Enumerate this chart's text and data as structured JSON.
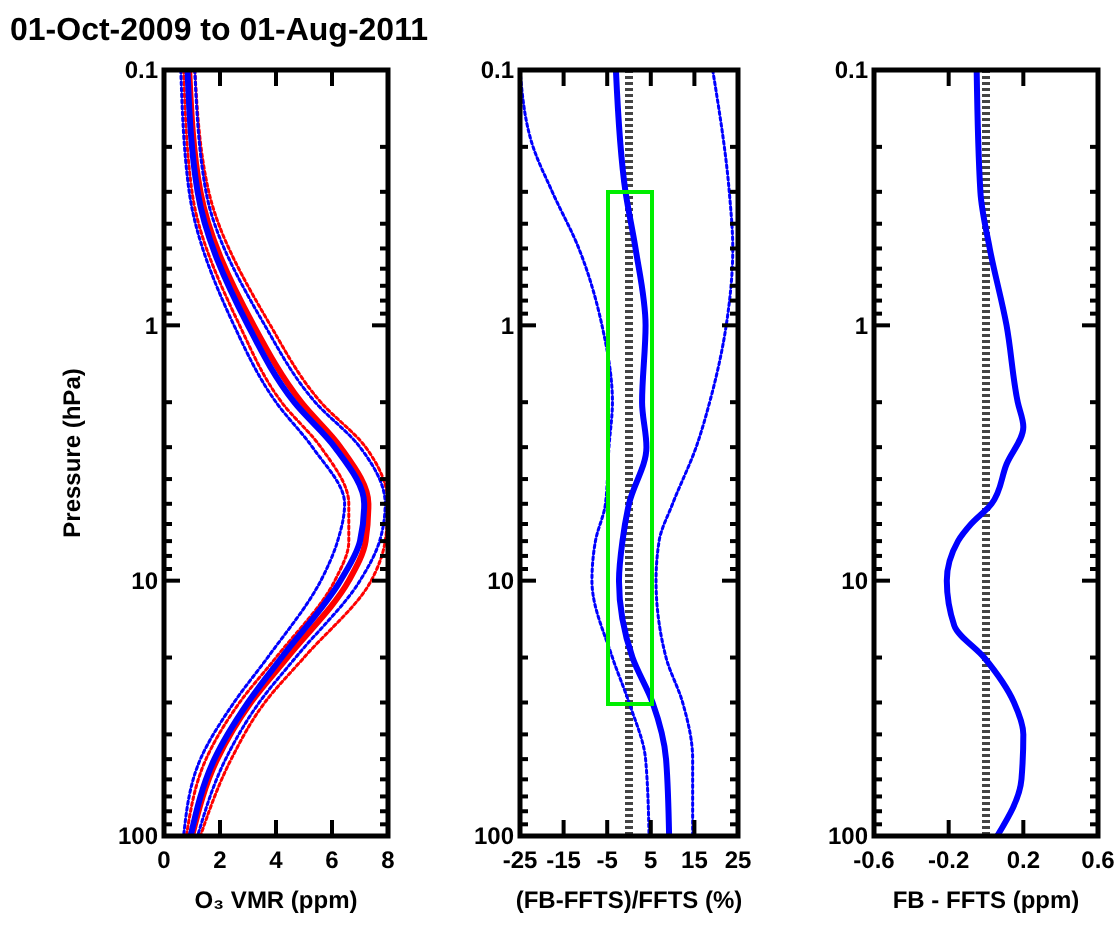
{
  "chart_data": [
    {
      "type": "line",
      "title": "01-Oct-2009 to 01-Aug-2011",
      "xlabel": "O₃ VMR (ppm)",
      "ylabel": "Pressure (hPa)",
      "log": "y",
      "xlim": [
        0,
        8
      ],
      "xticks": [
        0,
        2,
        4,
        6,
        8
      ],
      "ylim": [
        100,
        0.1
      ],
      "yticks": [
        0.1,
        {
          "value": 0.2,
          "label": null
        },
        {
          "value": 0.3,
          "label": null
        },
        {
          "value": 0.4,
          "label": null
        },
        {
          "value": 0.5,
          "label": null
        },
        {
          "value": 0.6,
          "label": null
        },
        {
          "value": 0.7,
          "label": null
        },
        {
          "value": 0.8,
          "label": null
        },
        {
          "value": 0.9,
          "label": null
        },
        1,
        {
          "value": 2,
          "label": null
        },
        {
          "value": 3,
          "label": null
        },
        {
          "value": 4,
          "label": null
        },
        {
          "value": 5,
          "label": null
        },
        {
          "value": 6,
          "label": null
        },
        {
          "value": 7,
          "label": null
        },
        {
          "value": 8,
          "label": null
        },
        {
          "value": 9,
          "label": null
        },
        10,
        {
          "value": 20,
          "label": null
        },
        {
          "value": 30,
          "label": null
        },
        {
          "value": 40,
          "label": null
        },
        {
          "value": 50,
          "label": null
        },
        {
          "value": 60,
          "label": null
        },
        {
          "value": 70,
          "label": null
        },
        {
          "value": 80,
          "label": null
        },
        {
          "value": 90,
          "label": null
        },
        100
      ],
      "series": [
        {
          "color": "#ff0000",
          "line_style": "dotted",
          "x": [
            0.7,
            1.0,
            2.7,
            4.2,
            5.6,
            6.6,
            6.6,
            6.1,
            4.0,
            2.7,
            1.5,
            0.8
          ],
          "values": [
            0.1,
            0.3,
            1,
            2,
            3,
            5,
            7,
            10,
            20,
            30,
            50,
            100
          ]
        },
        {
          "color": "#ff0000",
          "line_style": "dotted",
          "x": [
            1.1,
            1.6,
            3.8,
            5.6,
            7.2,
            8.0,
            7.9,
            7.4,
            5.0,
            3.6,
            2.4,
            1.3
          ],
          "values": [
            0.1,
            0.3,
            1,
            2,
            3,
            5,
            7,
            10,
            20,
            30,
            50,
            100
          ]
        },
        {
          "color": "#0000ff",
          "line_style": "dotted",
          "x": [
            0.6,
            0.9,
            2.5,
            4.0,
            5.3,
            6.45,
            6.2,
            5.6,
            3.7,
            2.5,
            1.3,
            0.7
          ],
          "values": [
            0.1,
            0.3,
            1,
            2,
            3,
            5,
            7,
            10,
            20,
            30,
            50,
            100
          ]
        },
        {
          "color": "#0000ff",
          "line_style": "dotted",
          "x": [
            1.1,
            1.5,
            3.6,
            5.4,
            7.0,
            7.9,
            7.7,
            7.0,
            4.7,
            3.4,
            2.2,
            1.2
          ],
          "values": [
            0.1,
            0.3,
            1,
            2,
            3,
            5,
            7,
            10,
            20,
            30,
            50,
            100
          ]
        },
        {
          "color": "#ff0000",
          "line_style": "solid",
          "x": [
            0.9,
            1.3,
            3.2,
            4.9,
            6.3,
            7.3,
            7.2,
            6.6,
            4.4,
            3.1,
            1.9,
            1.0
          ],
          "values": [
            0.1,
            0.3,
            1,
            2,
            3,
            5,
            7,
            10,
            20,
            30,
            50,
            100
          ]
        },
        {
          "color": "#0000ff",
          "line_style": "solid",
          "x": [
            0.84,
            1.2,
            3.0,
            4.65,
            6.1,
            7.15,
            7.0,
            6.3,
            4.2,
            3.0,
            1.8,
            0.95
          ],
          "values": [
            0.1,
            0.3,
            1,
            2,
            3,
            5,
            7,
            10,
            20,
            30,
            50,
            100
          ]
        }
      ]
    },
    {
      "type": "line",
      "xlabel": "(FB-FFTS)/FFTS (%)",
      "log": "y",
      "xlim": [
        -25,
        25
      ],
      "xticks": [
        -25,
        -15,
        -5,
        5,
        15,
        25
      ],
      "ylim": [
        100,
        0.1
      ],
      "yticks": [
        0.1,
        {
          "value": 0.2,
          "label": null
        },
        {
          "value": 0.3,
          "label": null
        },
        {
          "value": 0.4,
          "label": null
        },
        {
          "value": 0.5,
          "label": null
        },
        {
          "value": 0.6,
          "label": null
        },
        {
          "value": 0.7,
          "label": null
        },
        {
          "value": 0.8,
          "label": null
        },
        {
          "value": 0.9,
          "label": null
        },
        1,
        {
          "value": 2,
          "label": null
        },
        {
          "value": 3,
          "label": null
        },
        {
          "value": 4,
          "label": null
        },
        {
          "value": 5,
          "label": null
        },
        {
          "value": 6,
          "label": null
        },
        {
          "value": 7,
          "label": null
        },
        {
          "value": 8,
          "label": null
        },
        {
          "value": 9,
          "label": null
        },
        10,
        {
          "value": 20,
          "label": null
        },
        {
          "value": 30,
          "label": null
        },
        {
          "value": 40,
          "label": null
        },
        {
          "value": 50,
          "label": null
        },
        {
          "value": 60,
          "label": null
        },
        {
          "value": 70,
          "label": null
        },
        {
          "value": 80,
          "label": null
        },
        {
          "value": 90,
          "label": null
        },
        100
      ],
      "ref_lines": [
        {
          "axis": "x",
          "value": 0,
          "color": "#444444",
          "line_style": "dotted"
        }
      ],
      "series": [
        {
          "color": "#0000ff",
          "line_style": "dotted",
          "x": [
            -25,
            -22,
            -17.6,
            -11.5,
            -6.2,
            -3.8,
            -4.6,
            -5.4,
            -7.7,
            -8.5,
            -3.8,
            0,
            3.8,
            4.6
          ],
          "values": [
            0.1,
            0.2,
            0.3,
            0.5,
            1,
            2,
            3,
            5,
            7,
            10,
            20,
            30,
            50,
            100
          ]
        },
        {
          "color": "#0000ff",
          "line_style": "dotted",
          "x": [
            19.2,
            23,
            23.8,
            22.3,
            18.5,
            15.4,
            10,
            6.9,
            6.2,
            8.5,
            12.3,
            14.6,
            14.6
          ],
          "values": [
            0.1,
            0.3,
            0.5,
            1,
            2,
            3,
            5,
            7,
            10,
            20,
            30,
            50,
            100
          ]
        },
        {
          "color": "#0000ff",
          "line_style": "solid",
          "x": [
            -3,
            -0.8,
            1.5,
            3.8,
            3,
            4,
            0,
            -1.5,
            -2.3,
            0.8,
            5.4,
            8.5,
            9.2
          ],
          "values": [
            0.1,
            0.3,
            0.5,
            1,
            2,
            3,
            5,
            7,
            10,
            20,
            30,
            50,
            100
          ]
        }
      ]
    },
    {
      "type": "line",
      "xlabel": "FB - FFTS (ppm)",
      "log": "y",
      "xlim": [
        -0.6,
        0.6
      ],
      "xticks": [
        -0.6,
        -0.2,
        0.2,
        0.6
      ],
      "ylim": [
        100,
        0.1
      ],
      "yticks": [
        0.1,
        {
          "value": 0.2,
          "label": null
        },
        {
          "value": 0.3,
          "label": null
        },
        {
          "value": 0.4,
          "label": null
        },
        {
          "value": 0.5,
          "label": null
        },
        {
          "value": 0.6,
          "label": null
        },
        {
          "value": 0.7,
          "label": null
        },
        {
          "value": 0.8,
          "label": null
        },
        {
          "value": 0.9,
          "label": null
        },
        1,
        {
          "value": 2,
          "label": null
        },
        {
          "value": 3,
          "label": null
        },
        {
          "value": 4,
          "label": null
        },
        {
          "value": 5,
          "label": null
        },
        {
          "value": 6,
          "label": null
        },
        {
          "value": 7,
          "label": null
        },
        {
          "value": 8,
          "label": null
        },
        {
          "value": 9,
          "label": null
        },
        10,
        {
          "value": 20,
          "label": null
        },
        {
          "value": 30,
          "label": null
        },
        {
          "value": 40,
          "label": null
        },
        {
          "value": 50,
          "label": null
        },
        {
          "value": 60,
          "label": null
        },
        {
          "value": 70,
          "label": null
        },
        {
          "value": 80,
          "label": null
        },
        {
          "value": 90,
          "label": null
        },
        100
      ],
      "ref_lines": [
        {
          "axis": "x",
          "value": 0,
          "color": "#444444",
          "line_style": "dotted"
        }
      ],
      "series": [
        {
          "color": "#0000ff",
          "line_style": "solid",
          "x": [
            -0.05,
            -0.03,
            0.02,
            0.11,
            0.17,
            0.2,
            0.11,
            0.03,
            -0.08,
            -0.15,
            -0.21,
            -0.17,
            -0.01,
            0.15,
            0.2,
            0.19,
            0.06
          ],
          "values": [
            0.1,
            0.3,
            0.5,
            1,
            2,
            2.5,
            3.5,
            5,
            6,
            7,
            10,
            15,
            20,
            30,
            40,
            60,
            100
          ]
        }
      ]
    }
  ]
}
